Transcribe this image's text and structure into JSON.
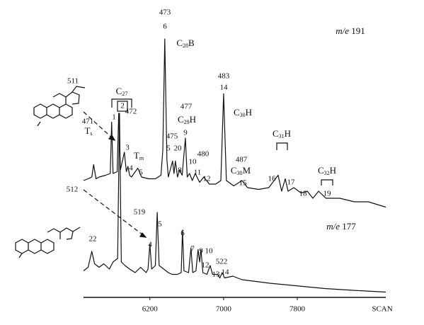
{
  "chart_data": {
    "type": "line",
    "xlabel": "SCAN",
    "xlim": [
      5480,
      8760
    ],
    "xticks": [
      6200,
      7000,
      7800
    ],
    "series": [
      {
        "name": "m/e 191",
        "color": "#111111",
        "x": [
          5480,
          5530,
          5570,
          5590,
          5615,
          5650,
          5720,
          5770,
          5785,
          5800,
          5845,
          5862,
          5880,
          5923,
          5945,
          5962,
          5980,
          6000,
          6069,
          6110,
          6185,
          6260,
          6320,
          6340,
          6362,
          6385,
          6400,
          6446,
          6462,
          6477,
          6500,
          6523,
          6550,
          6585,
          6605,
          6631,
          6660,
          6692,
          6740,
          6785,
          6845,
          6915,
          6970,
          7000,
          7030,
          7110,
          7200,
          7260,
          7380,
          7490,
          7592,
          7630,
          7669,
          7700,
          7762,
          7840,
          7908,
          7969,
          8031,
          8110,
          8260,
          8420,
          8570,
          8760
        ],
        "values": [
          18,
          19,
          20,
          27,
          19,
          20,
          21,
          22,
          51,
          22,
          23,
          56,
          24,
          34,
          23,
          26,
          21,
          20,
          25,
          20,
          19,
          19,
          21,
          35,
          98,
          30,
          20,
          29,
          22,
          29,
          20,
          24,
          21,
          42,
          20,
          22,
          18,
          22,
          17,
          20,
          16,
          16,
          18,
          67,
          18,
          15,
          18,
          14,
          13,
          14,
          21,
          12,
          19,
          12,
          14,
          11,
          12,
          8,
          12,
          8,
          8,
          6,
          6,
          3
        ]
      },
      {
        "name": "m/e 177",
        "color": "#111111",
        "x": [
          5480,
          5530,
          5570,
          5600,
          5650,
          5700,
          5760,
          5800,
          5850,
          5870,
          5890,
          5930,
          5980,
          6040,
          6100,
          6160,
          6180,
          6200,
          6220,
          6260,
          6280,
          6300,
          6400,
          6440,
          6500,
          6540,
          6554,
          6570,
          6620,
          6646,
          6665,
          6700,
          6723,
          6740,
          6754,
          6775,
          6820,
          6854,
          6880,
          6931,
          6960,
          6985,
          7010,
          7100,
          7200,
          7350,
          7500,
          7700,
          7900,
          8100,
          8400,
          8760
        ],
        "values": [
          15,
          17,
          26,
          19,
          17,
          19,
          16,
          20,
          22,
          104,
          20,
          18,
          16,
          14,
          17,
          14,
          16,
          30,
          16,
          18,
          48,
          18,
          14,
          13,
          13,
          14,
          38,
          15,
          14,
          28,
          14,
          15,
          27,
          20,
          27,
          14,
          13,
          18,
          13,
          13,
          11,
          14,
          11,
          12,
          10,
          9,
          8,
          7,
          6,
          5,
          4,
          3
        ]
      }
    ],
    "annotations": [
      "473",
      "6",
      "C28B",
      "m/e 191",
      "511",
      "C27",
      "2",
      "1",
      "471",
      "Ts",
      "472",
      "3",
      "Tm",
      "4",
      "5",
      "477",
      "C29H",
      "475",
      "5",
      "20",
      "8",
      "9",
      "10",
      "11",
      "12",
      "480",
      "483",
      "14",
      "C30H",
      "487",
      "C30M",
      "15",
      "C31H",
      "16",
      "17",
      "C32H",
      "18",
      "19",
      "512",
      "22",
      "519",
      "5",
      "4",
      "6",
      "7",
      "9",
      "10",
      "12",
      "522",
      "13",
      "14",
      "m/e 177"
    ]
  }
}
